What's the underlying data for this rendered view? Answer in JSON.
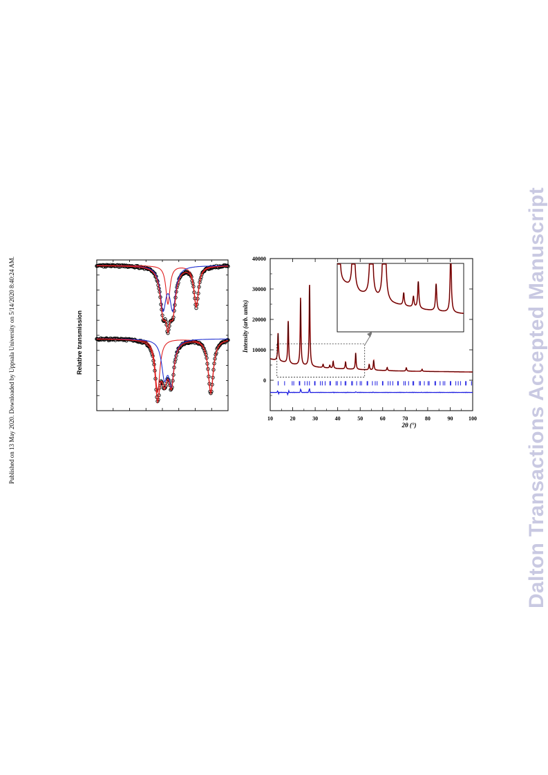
{
  "page": {
    "side_note": "Published on 13 May 2020. Downloaded by Uppsala University on 5/14/2020 8:40:24 AM.",
    "watermark": "Dalton Transactions Accepted Manuscript"
  },
  "chart_data": [
    {
      "type": "line",
      "title": "",
      "xlabel": "",
      "ylabel": "Relative transmission",
      "series": [
        {
          "color": "#e02020"
        },
        {
          "color": "#2030d0"
        },
        {
          "color": "#000000"
        }
      ]
    },
    {
      "type": "line",
      "title": "",
      "xlabel": "2θ (°)",
      "ylabel": "Intensity (arb. units)",
      "xlim": [
        10,
        100
      ],
      "ylim": [
        -10000,
        40000
      ],
      "xticks": [
        "10",
        "20",
        "30",
        "40",
        "50",
        "60",
        "70",
        "80",
        "90",
        "100"
      ],
      "yticks": [
        "0",
        "10000",
        "20000",
        "30000",
        "40000"
      ],
      "background_level": [
        [
          10,
          7000
        ],
        [
          20,
          5200
        ],
        [
          30,
          4300
        ],
        [
          40,
          3800
        ],
        [
          50,
          3500
        ],
        [
          60,
          3200
        ],
        [
          70,
          3000
        ],
        [
          80,
          2900
        ],
        [
          90,
          2800
        ],
        [
          100,
          2700
        ]
      ],
      "peaks": [
        {
          "x": 13.5,
          "y": 15500
        },
        {
          "x": 18.0,
          "y": 19500
        },
        {
          "x": 23.5,
          "y": 27000
        },
        {
          "x": 27.5,
          "y": 31500
        },
        {
          "x": 33.5,
          "y": 5200
        },
        {
          "x": 36.5,
          "y": 4900
        },
        {
          "x": 38.0,
          "y": 6200
        },
        {
          "x": 43.5,
          "y": 6000
        },
        {
          "x": 48.0,
          "y": 9000
        },
        {
          "x": 54.0,
          "y": 5200
        },
        {
          "x": 56.0,
          "y": 6500
        },
        {
          "x": 62.0,
          "y": 4200
        },
        {
          "x": 70.5,
          "y": 4100
        },
        {
          "x": 77.5,
          "y": 3600
        }
      ],
      "series": [
        {
          "color": "#000000"
        },
        {
          "color": "#d01010"
        },
        {
          "color": "#1a1ae0"
        }
      ],
      "inset_range": [
        13,
        52
      ]
    }
  ]
}
